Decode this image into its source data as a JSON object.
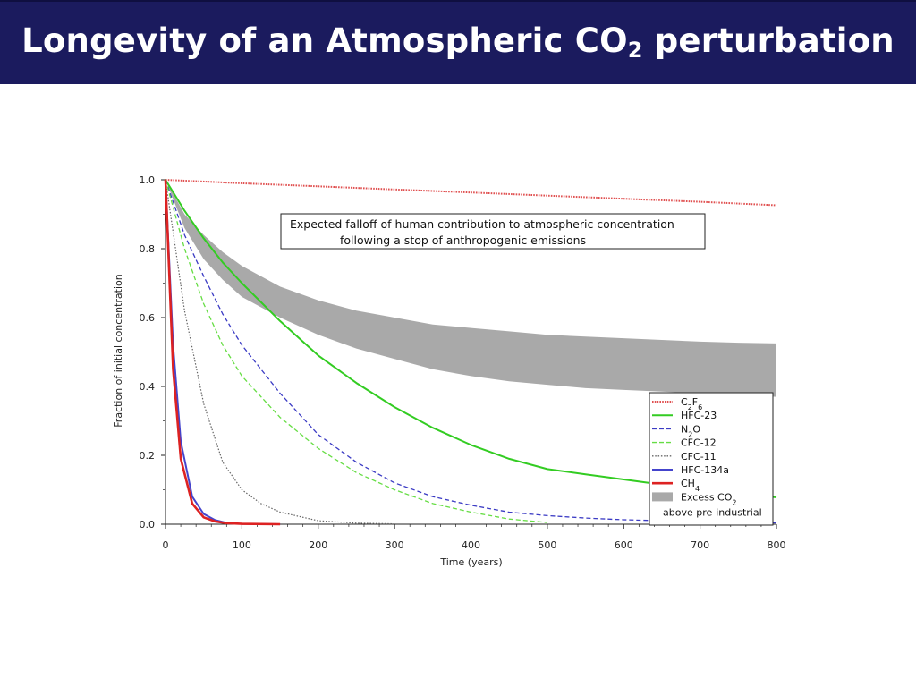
{
  "slide": {
    "title_main": "Longevity of an Atmospheric CO",
    "title_sub": "2",
    "title_tail": " perturbation"
  },
  "chart_data": {
    "type": "line",
    "title": "",
    "annotation": {
      "line1": "Expected falloff of human contribution to atmospheric concentration",
      "line2": "following a stop of anthropogenic emissions"
    },
    "xlabel": "Time (years)",
    "ylabel": "Fraction of initial concentration",
    "xlim": [
      0,
      800
    ],
    "ylim": [
      0,
      1.0
    ],
    "xticks": [
      0,
      100,
      200,
      300,
      400,
      500,
      600,
      700,
      800
    ],
    "yticks": [
      0.0,
      0.2,
      0.4,
      0.6,
      0.8,
      1.0
    ],
    "grid": false,
    "legend_position": "bottom-right",
    "series": [
      {
        "name": "C2F6",
        "label_main": "C",
        "label_sub1": "2",
        "label_mid": "F",
        "label_sub2": "6",
        "color": "#e05050",
        "style": "dotted-thick",
        "x": [
          0,
          100,
          200,
          300,
          400,
          500,
          600,
          700,
          800
        ],
        "y": [
          1.0,
          0.99,
          0.981,
          0.972,
          0.963,
          0.954,
          0.945,
          0.936,
          0.926
        ]
      },
      {
        "name": "HFC-23",
        "color": "#33cc22",
        "style": "solid",
        "x": [
          0,
          25,
          50,
          75,
          100,
          150,
          200,
          250,
          300,
          350,
          400,
          450,
          500,
          550,
          600,
          650,
          700,
          750,
          800
        ],
        "y": [
          1.0,
          0.91,
          0.83,
          0.76,
          0.7,
          0.59,
          0.49,
          0.41,
          0.34,
          0.28,
          0.23,
          0.19,
          0.16,
          0.145,
          0.13,
          0.115,
          0.1,
          0.09,
          0.078
        ]
      },
      {
        "name": "N2O",
        "label_main": "N",
        "label_sub1": "2",
        "label_mid": "O",
        "label_sub2": "",
        "color": "#3b3bc4",
        "style": "dashed",
        "x": [
          0,
          25,
          50,
          75,
          100,
          150,
          200,
          250,
          300,
          350,
          400,
          450,
          500,
          550,
          600,
          650,
          700,
          750,
          800
        ],
        "y": [
          1.0,
          0.84,
          0.72,
          0.61,
          0.52,
          0.38,
          0.26,
          0.18,
          0.12,
          0.08,
          0.055,
          0.035,
          0.025,
          0.018,
          0.013,
          0.01,
          0.007,
          0.005,
          0.004
        ]
      },
      {
        "name": "CFC-12",
        "color": "#66dd44",
        "style": "dashed",
        "x": [
          0,
          25,
          50,
          75,
          100,
          150,
          200,
          250,
          300,
          350,
          400,
          450,
          500
        ],
        "y": [
          1.0,
          0.8,
          0.64,
          0.52,
          0.43,
          0.31,
          0.22,
          0.15,
          0.1,
          0.06,
          0.035,
          0.015,
          0.005
        ]
      },
      {
        "name": "CFC-11",
        "color": "#666666",
        "style": "dotted",
        "x": [
          0,
          25,
          50,
          75,
          100,
          125,
          150,
          200,
          250,
          300
        ],
        "y": [
          1.0,
          0.62,
          0.35,
          0.18,
          0.1,
          0.06,
          0.035,
          0.01,
          0.003,
          0.001
        ]
      },
      {
        "name": "HFC-134a",
        "color": "#4444cc",
        "style": "solid",
        "x": [
          0,
          10,
          20,
          35,
          50,
          65,
          80,
          100,
          150
        ],
        "y": [
          1.0,
          0.52,
          0.24,
          0.08,
          0.03,
          0.012,
          0.004,
          0.001,
          0.0
        ]
      },
      {
        "name": "CH4",
        "label_main": "CH",
        "label_sub1": "4",
        "label_mid": "",
        "label_sub2": "",
        "color": "#dd2222",
        "style": "solid-thick",
        "x": [
          0,
          10,
          20,
          35,
          50,
          65,
          80,
          100,
          150
        ],
        "y": [
          1.0,
          0.45,
          0.19,
          0.06,
          0.02,
          0.008,
          0.003,
          0.001,
          0.0
        ]
      }
    ],
    "band": {
      "name": "Excess CO2 above pre-industrial",
      "legend_line1": "Excess CO",
      "legend_line1_sub": "2",
      "legend_line2": "above pre-industrial",
      "color": "#a9a9a9",
      "x": [
        0,
        25,
        50,
        75,
        100,
        150,
        200,
        250,
        300,
        350,
        400,
        450,
        500,
        550,
        600,
        650,
        700,
        750,
        800
      ],
      "upper": [
        1.0,
        0.9,
        0.84,
        0.79,
        0.75,
        0.69,
        0.65,
        0.62,
        0.6,
        0.58,
        0.57,
        0.56,
        0.55,
        0.545,
        0.54,
        0.535,
        0.53,
        0.527,
        0.525
      ],
      "lower": [
        1.0,
        0.86,
        0.77,
        0.71,
        0.66,
        0.6,
        0.55,
        0.51,
        0.48,
        0.45,
        0.43,
        0.415,
        0.405,
        0.395,
        0.39,
        0.385,
        0.38,
        0.375,
        0.37
      ]
    }
  }
}
